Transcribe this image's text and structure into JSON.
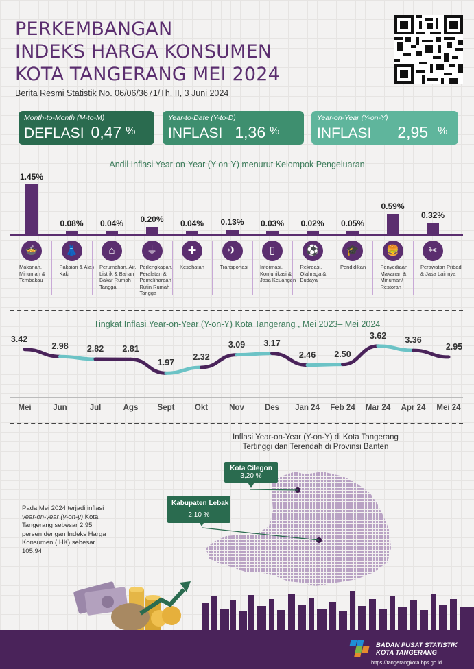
{
  "header": {
    "title_lines": [
      "PERKEMBANGAN",
      "INDEKS HARGA KONSUMEN",
      "KOTA TANGERANG MEI 2024"
    ],
    "subtitle": "Berita Resmi Statistik No. 06/06/3671/Th. II, 3 Juni 2024"
  },
  "summary": [
    {
      "label": "Month-to-Month (M-to-M)",
      "kind": "DEFLASI",
      "value": "0,47",
      "unit": "%",
      "color": "#2a6b4f"
    },
    {
      "label": "Year-to-Date (Y-to-D)",
      "kind": "INFLASI",
      "value": "1,36",
      "unit": "%",
      "color": "#3e8f6f"
    },
    {
      "label": "Year-on-Year (Y-on-Y)",
      "kind": "INFLASI",
      "value": "2,95",
      "unit": "%",
      "color": "#5fb59c"
    }
  ],
  "andil": {
    "title": "Andil Inflasi Year-on-Year (Y-on-Y) menurut Kelompok Pengeluaran",
    "bar_color": "#5b2e6f",
    "categories": [
      {
        "label": "Makanan, Minuman & Tembakau",
        "value": "1.45%",
        "icon": "food-icon"
      },
      {
        "label": "Pakaian & Alas Kaki",
        "value": "0.08%",
        "icon": "dress-icon"
      },
      {
        "label": "Perumahan, Air, Listrik & Bahan Bakar Rumah Tangga",
        "value": "0.04%",
        "icon": "house-icon"
      },
      {
        "label": "Perlengkapan, Peralatan & Pemeliharaan Rutin Rumah Tangga",
        "value": "0.20%",
        "icon": "appliance-icon"
      },
      {
        "label": "Kesehatan",
        "value": "0.04%",
        "icon": "first-aid-icon"
      },
      {
        "label": "Transportasi",
        "value": "0.13%",
        "icon": "airplane-icon"
      },
      {
        "label": "Informasi, Komunikasi & Jasa Keuangan",
        "value": "0.03%",
        "icon": "phone-icon"
      },
      {
        "label": "Rekreasi, Olahraga & Budaya",
        "value": "0.02%",
        "icon": "sport-icon"
      },
      {
        "label": "Pendidikan",
        "value": "0.05%",
        "icon": "graduation-cap-icon"
      },
      {
        "label": "Penyediaan Makanan & Minuman/ Restoran",
        "value": "0.59%",
        "icon": "restaurant-icon"
      },
      {
        "label": "Perawatan Pribadi & Jasa Lainnya",
        "value": "0.32%",
        "icon": "scissors-icon"
      }
    ]
  },
  "trend": {
    "title": "Tingkat Inflasi Year-on-Year (Y-on-Y) Kota Tangerang , Mei 2023– Mei 2024",
    "colors": {
      "purple": "#4a235a",
      "teal": "#6cc3c6"
    }
  },
  "chart_data": {
    "type": "line",
    "categories": [
      "Mei",
      "Jun",
      "Jul",
      "Ags",
      "Sept",
      "Okt",
      "Nov",
      "Des",
      "Jan 24",
      "Feb 24",
      "Mar 24",
      "Apr 24",
      "Mei 24"
    ],
    "values": [
      3.42,
      2.98,
      2.82,
      2.81,
      1.97,
      2.32,
      3.09,
      3.17,
      2.46,
      2.5,
      3.62,
      3.36,
      2.95
    ],
    "labels": [
      "3.42",
      "2.98",
      "2.82",
      "2.81",
      "1.97",
      "2.32",
      "3.09",
      "3.17",
      "2.46",
      "2.50",
      "3.62",
      "3.36",
      "2.95"
    ],
    "title": "Tingkat Inflasi Year-on-Year (Y-on-Y) Kota Tangerang , Mei 2023– Mei 2024",
    "ylim": [
      1.9,
      3.7
    ]
  },
  "map": {
    "title_lines": [
      "Inflasi Year-on-Year (Y-on-Y) di Kota Tangerang",
      "Tertinggi dan Terendah di Provinsi Banten"
    ],
    "note_prefix": "Pada Mei 2024 terjadi inflasi ",
    "note_italic": "year-on-year (y-on-y)",
    "note_suffix": " Kota Tangerang sebesar 2,95 persen dengan Indeks Harga Konsumen (IHK) sebesar 105,94",
    "highest": {
      "name": "Kota Cilegon",
      "value": "3,20 %"
    },
    "lowest": {
      "name": "Kabupaten Lebak",
      "value": "2,10 %"
    },
    "map_color": "#b9a3c4"
  },
  "footer": {
    "org_line1": "BADAN PUSAT STATISTIK",
    "org_line2": "KOTA TANGERANG",
    "url": "https://tangerangkota.bps.go.id"
  }
}
